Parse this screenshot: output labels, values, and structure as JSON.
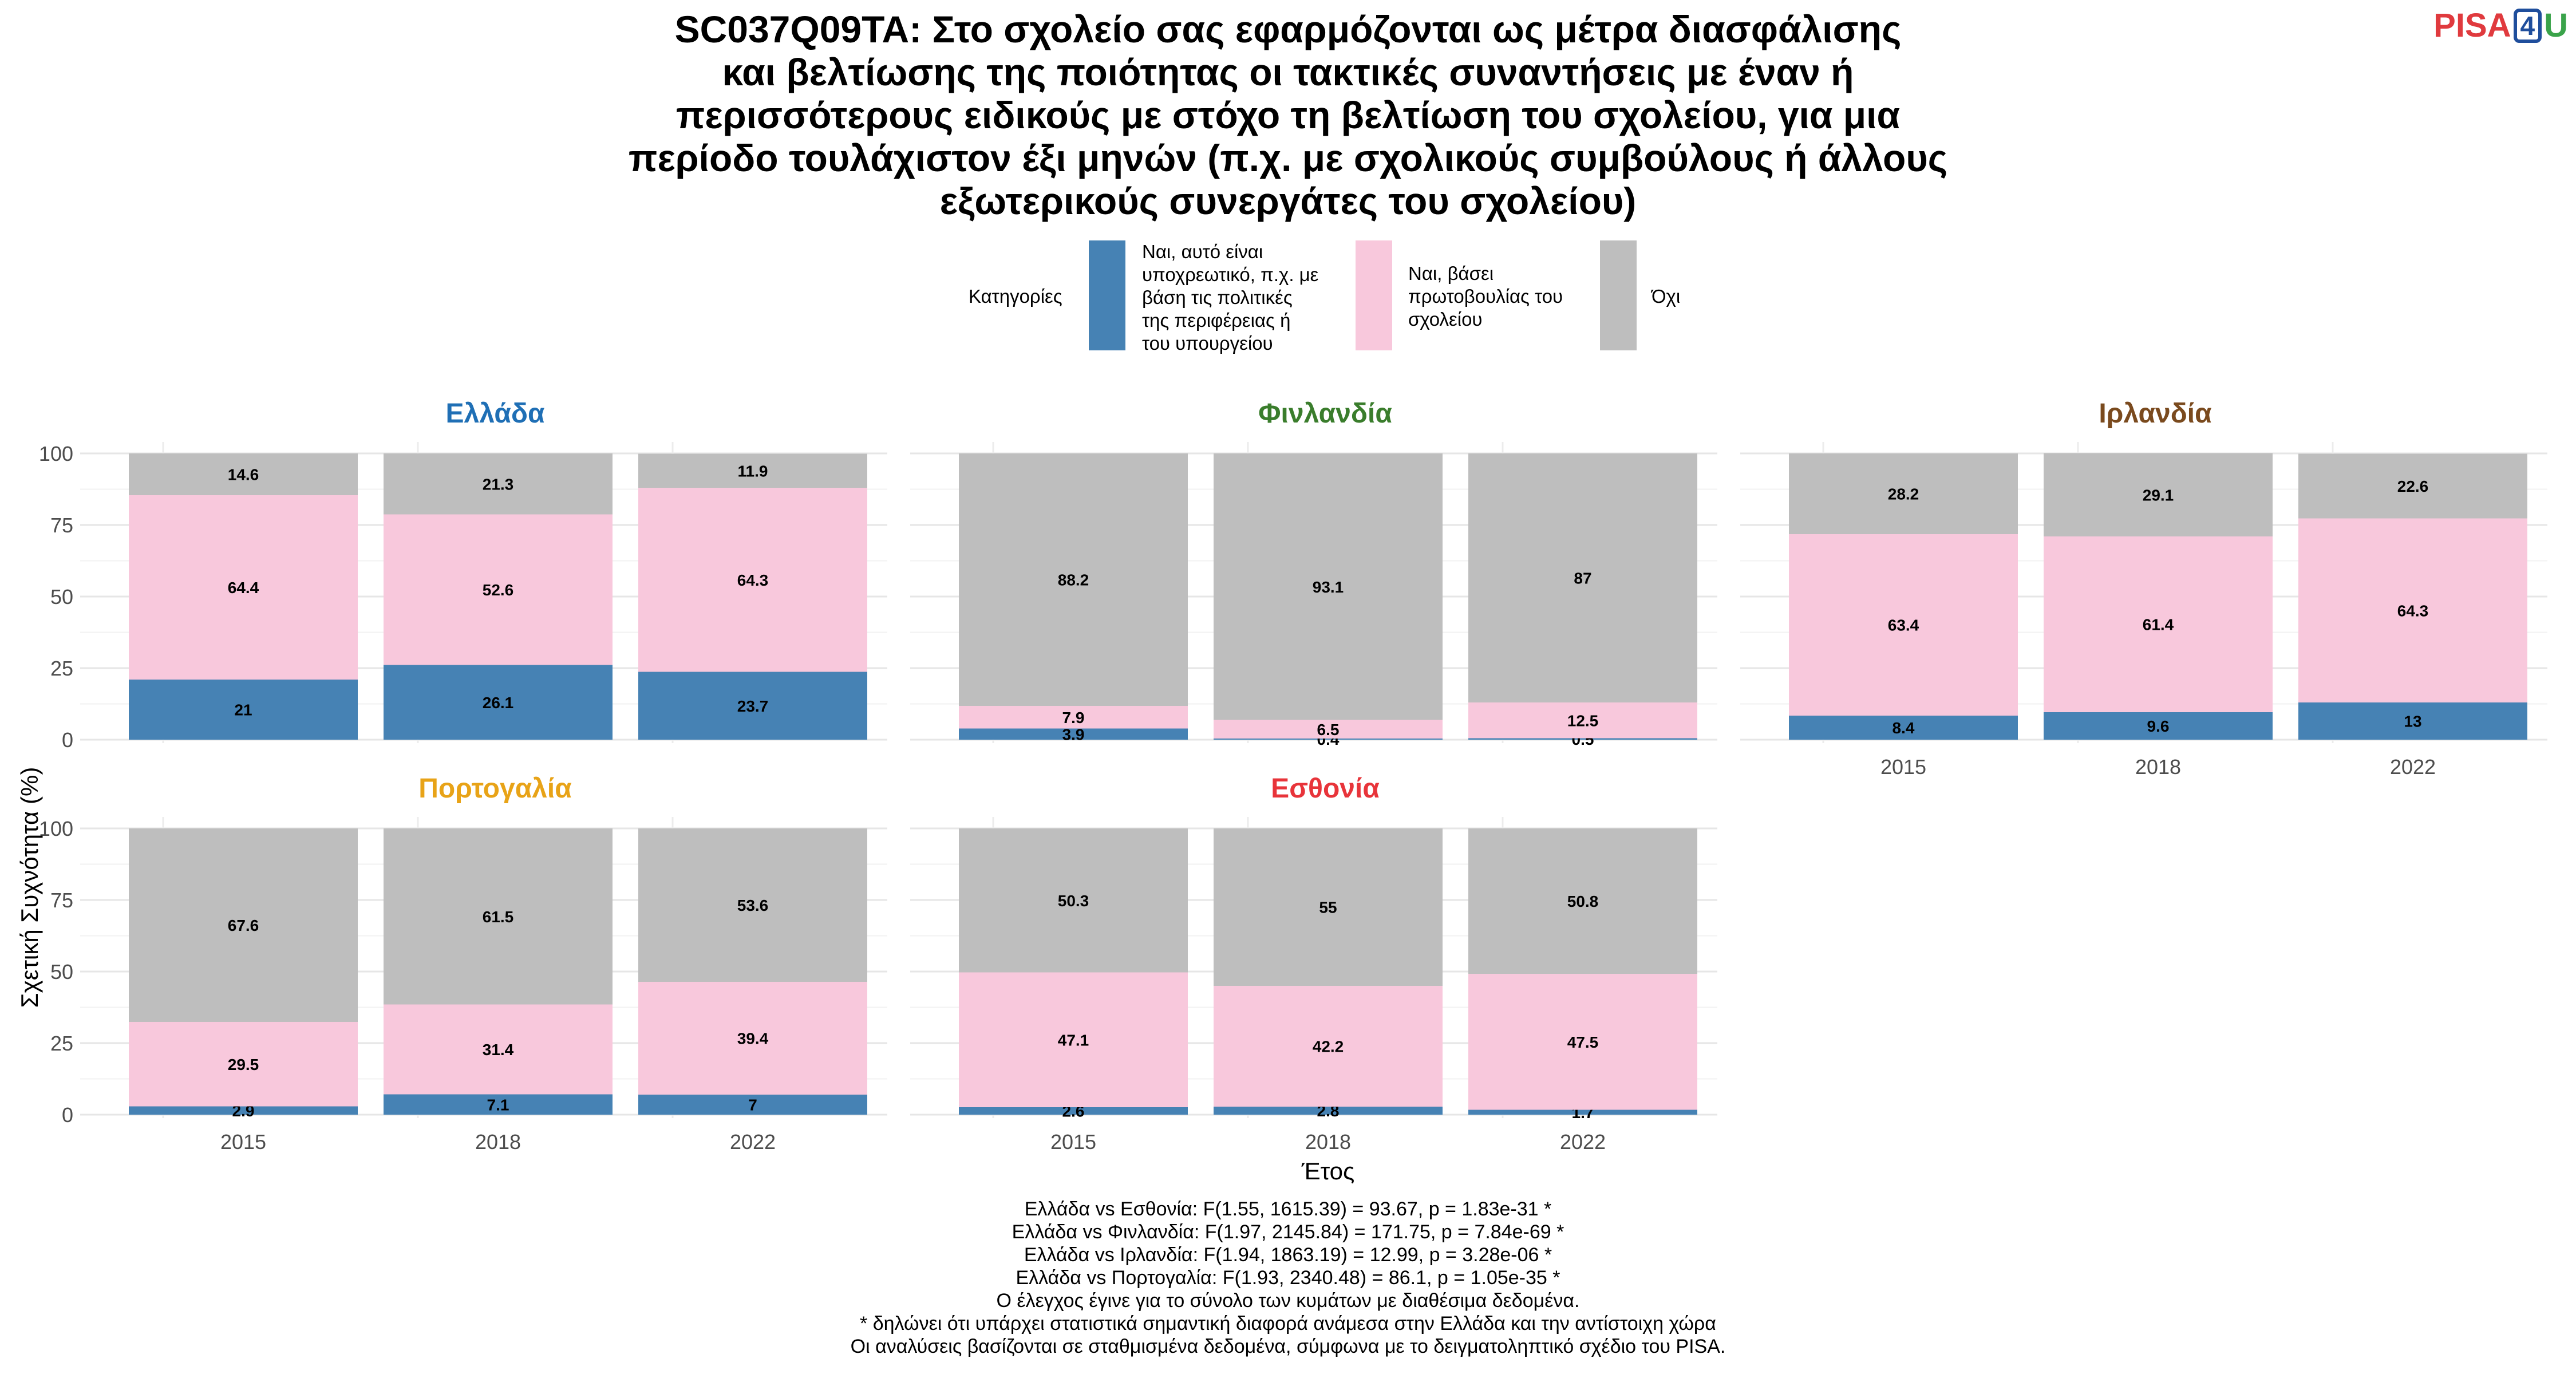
{
  "title_lines": [
    "SC037Q09TA: Στο σχολείο σας εφαρμόζονται ως μέτρα διασφάλισης",
    "και βελτίωσης της ποιότητας οι τακτικές συναντήσεις με έναν ή",
    "περισσότερους ειδικούς με στόχο τη βελτίωση του σχολείου, για μια",
    "περίοδο τουλάχιστον έξι μηνών (π.χ. με σχολικούς συμβούλους ή άλλους",
    "εξωτερικούς συνεργάτες του σχολείου)"
  ],
  "logo": {
    "pisa": "PISA",
    "four": "4",
    "u": "U"
  },
  "legend": {
    "title": "Κατηγορίες",
    "items": [
      {
        "lines": [
          "Ναι, αυτό είναι",
          "υποχρεωτικό, π.χ. με",
          "βάση τις πολιτικές",
          "της περιφέρειας ή",
          "του υπουργείου"
        ],
        "color": "#4682b4"
      },
      {
        "lines": [
          "Ναι, βάσει",
          "πρωτοβουλίας του",
          "σχολείου"
        ],
        "color": "#f8c8dc"
      },
      {
        "lines": [
          "Όχι"
        ],
        "color": "#bebebe"
      }
    ]
  },
  "axis": {
    "ylabel": "Σχετική Συχνότητα (%)",
    "xlabel": "Έτος"
  },
  "notes": [
    "Ελλάδα vs Εσθονία: F(1.55, 1615.39) = 93.67, p = 1.83e-31 *",
    "Ελλάδα vs Φινλανδία: F(1.97, 2145.84) = 171.75, p = 7.84e-69 *",
    "Ελλάδα vs Ιρλανδία: F(1.94, 1863.19) = 12.99, p = 3.28e-06 *",
    "Ελλάδα vs Πορτογαλία: F(1.93, 2340.48) = 86.1, p = 1.05e-35 *",
    "Ο έλεγχος έγινε για το σύνολο των κυμάτων με διαθέσιμα δεδομένα.",
    "* δηλώνει ότι υπάρχει στατιστικά σημαντική διαφορά ανάμεσα στην Ελλάδα και την αντίστοιχη χώρα",
    "Οι αναλύσεις βασίζονται σε σταθμισμένα δεδομένα, σύμφωνα με το δειγματοληπτικό σχέδιο του PISA."
  ],
  "chart_data": {
    "type": "bar",
    "stacked": true,
    "ylim": [
      0,
      100
    ],
    "yticks": [
      0,
      25,
      50,
      75,
      100
    ],
    "categories": [
      "2015",
      "2018",
      "2022"
    ],
    "series_colors": [
      "#4682b4",
      "#f8c8dc",
      "#bebebe"
    ],
    "panels": [
      {
        "name": "Ελλάδα",
        "color": "#1f6fb5",
        "values": [
          [
            21,
            64.4,
            14.6
          ],
          [
            26.1,
            52.6,
            21.3
          ],
          [
            23.7,
            64.3,
            11.9
          ]
        ]
      },
      {
        "name": "Φινλανδία",
        "color": "#3a7d2c",
        "values": [
          [
            3.9,
            7.9,
            88.2
          ],
          [
            0.4,
            6.5,
            93.1
          ],
          [
            0.5,
            12.5,
            87
          ]
        ]
      },
      {
        "name": "Ιρλανδία",
        "color": "#7a4a1e",
        "values": [
          [
            8.4,
            63.4,
            28.2
          ],
          [
            9.6,
            61.4,
            29.1
          ],
          [
            13,
            64.3,
            22.6
          ]
        ]
      },
      {
        "name": "Πορτογαλία",
        "color": "#e8a317",
        "values": [
          [
            2.9,
            29.5,
            67.6
          ],
          [
            7.1,
            31.4,
            61.5
          ],
          [
            7,
            39.4,
            53.6
          ]
        ]
      },
      {
        "name": "Εσθονία",
        "color": "#e8343a",
        "values": [
          [
            2.6,
            47.1,
            50.3
          ],
          [
            2.8,
            42.2,
            55
          ],
          [
            1.7,
            47.5,
            50.8
          ]
        ]
      }
    ]
  }
}
